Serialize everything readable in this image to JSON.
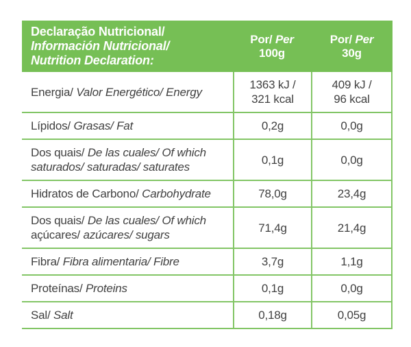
{
  "colors": {
    "header_background": "#76BF55",
    "grid_line": "#82C565",
    "header_text": "#FFFFFF",
    "body_text": "#404040"
  },
  "header": {
    "title_lines": [
      {
        "text": "Declaração Nutricional/",
        "italic": false
      },
      {
        "text": "Información Nutricional/",
        "italic": true
      },
      {
        "text": "Nutrition Declaration:",
        "italic": true
      }
    ],
    "columns": [
      {
        "por": "Por/",
        "per": "Per",
        "amount": "100g"
      },
      {
        "por": "Por/",
        "per": "Per",
        "amount": "30g"
      }
    ]
  },
  "rows": [
    {
      "name": "energy",
      "label_segments": [
        {
          "text": "Energia/ ",
          "italic": false
        },
        {
          "text": "Valor Energético/ Energy",
          "italic": true
        }
      ],
      "per100g": [
        "1363 kJ /",
        "321 kcal"
      ],
      "per30g": [
        "409 kJ /",
        "96 kcal"
      ]
    },
    {
      "name": "fat",
      "label_segments": [
        {
          "text": "Lípidos/ ",
          "italic": false
        },
        {
          "text": "Grasas/ Fat",
          "italic": true
        }
      ],
      "per100g": [
        "0,2g"
      ],
      "per30g": [
        "0,0g"
      ]
    },
    {
      "name": "saturates",
      "label_segments": [
        {
          "text": "Dos quais/ ",
          "italic": false
        },
        {
          "text": "De las cuales/ Of which",
          "italic": true
        },
        {
          "br": true
        },
        {
          "text": "saturados/ saturadas/ saturates",
          "italic": true
        }
      ],
      "per100g": [
        "0,1g"
      ],
      "per30g": [
        "0,0g"
      ]
    },
    {
      "name": "carbohydrate",
      "label_segments": [
        {
          "text": "Hidratos de Carbono/ ",
          "italic": false
        },
        {
          "text": "Carbohydrate",
          "italic": true
        }
      ],
      "per100g": [
        "78,0g"
      ],
      "per30g": [
        "23,4g"
      ]
    },
    {
      "name": "sugars",
      "label_segments": [
        {
          "text": "Dos quais/ ",
          "italic": false
        },
        {
          "text": "De las cuales/ Of which",
          "italic": true
        },
        {
          "br": true
        },
        {
          "text": "açúcares/ ",
          "italic": false
        },
        {
          "text": "azúcares/ sugars",
          "italic": true
        }
      ],
      "per100g": [
        "71,4g"
      ],
      "per30g": [
        "21,4g"
      ]
    },
    {
      "name": "fibre",
      "label_segments": [
        {
          "text": "Fibra/ ",
          "italic": false
        },
        {
          "text": "Fibra alimentaria/ Fibre",
          "italic": true
        }
      ],
      "per100g": [
        "3,7g"
      ],
      "per30g": [
        "1,1g"
      ]
    },
    {
      "name": "proteins",
      "label_segments": [
        {
          "text": "Proteínas/ ",
          "italic": false
        },
        {
          "text": "Proteins",
          "italic": true
        }
      ],
      "per100g": [
        "0,1g"
      ],
      "per30g": [
        "0,0g"
      ]
    },
    {
      "name": "salt",
      "label_segments": [
        {
          "text": "Sal/ ",
          "italic": false
        },
        {
          "text": "Salt",
          "italic": true
        }
      ],
      "per100g": [
        "0,18g"
      ],
      "per30g": [
        "0,05g"
      ]
    }
  ]
}
